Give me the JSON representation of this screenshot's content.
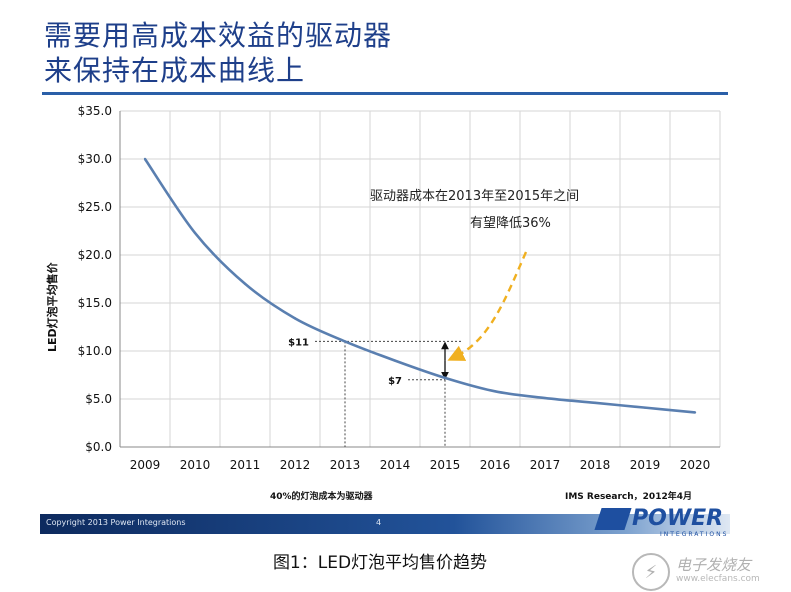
{
  "slide": {
    "title_line1": "需要用高成本效益的驱动器",
    "title_line2": "来保持在成本曲线上",
    "footer_left": "40%的灯泡成本为驱动器",
    "footer_right": "IMS Research，2012年4月",
    "copyright": "Copyright 2013 Power Integrations",
    "page_number": "4",
    "logo_text": "POWER",
    "logo_subtext": "INTEGRATIONS",
    "caption": "图1：LED灯泡平均售价趋势"
  },
  "watermark": {
    "name": "电子发烧友",
    "url": "www.elecfans.com"
  },
  "colors": {
    "title": "#1e3f8a",
    "line": "#5a7fb0",
    "arrow": "#f0b020"
  },
  "chart_data": {
    "type": "line",
    "title": "",
    "xlabel": "",
    "ylabel": "LED灯泡平均售价",
    "x": [
      "2009",
      "2010",
      "2011",
      "2012",
      "2013",
      "2014",
      "2015",
      "2016",
      "2017",
      "2018",
      "2019",
      "2020"
    ],
    "series": [
      {
        "name": "LED灯泡平均售价",
        "values": [
          30.0,
          22.3,
          17.0,
          13.4,
          11.0,
          9.0,
          7.2,
          5.8,
          5.1,
          4.6,
          4.1,
          3.6
        ]
      }
    ],
    "ylim": [
      0,
      35
    ],
    "yticks": [
      0,
      5,
      10,
      15,
      20,
      25,
      30,
      35
    ],
    "ytick_labels": [
      "$0.0",
      "$5.0",
      "$10.0",
      "$15.0",
      "$20.0",
      "$25.0",
      "$30.0",
      "$35.0"
    ],
    "grid": true,
    "markers": [
      {
        "label": "$11",
        "year": "2013",
        "value": 11
      },
      {
        "label": "$7",
        "year": "2015",
        "value": 7
      }
    ],
    "annotation_line1": "驱动器成本在2013年至2015年之间",
    "annotation_line2": "有望降低36%"
  }
}
